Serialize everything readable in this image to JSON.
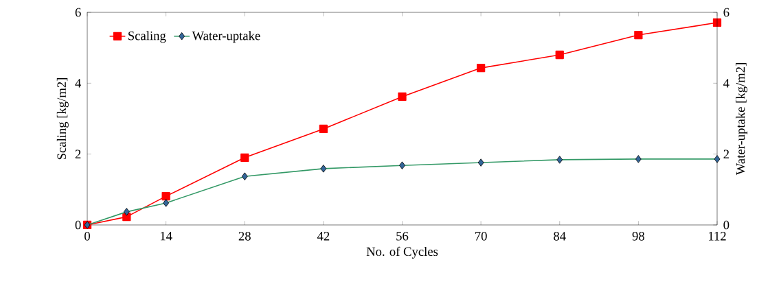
{
  "chart_data": {
    "type": "line",
    "xlabel": "No. of Cycles",
    "ylabel": "Scaling  [kg/m2]",
    "y2label": "Water-uptake  [kg/m2]",
    "x": [
      0,
      7,
      14,
      28,
      42,
      56,
      70,
      84,
      98,
      112
    ],
    "xlim": [
      0,
      112
    ],
    "xticks": [
      0,
      14,
      28,
      42,
      56,
      70,
      84,
      98,
      112
    ],
    "ylim": [
      0,
      6
    ],
    "yticks": [
      0,
      2,
      4,
      6
    ],
    "y2lim": [
      0,
      6
    ],
    "y2ticks": [
      0,
      2,
      4,
      6
    ],
    "legend": "top left",
    "grid": false,
    "series": [
      {
        "name": "Scaling",
        "color": "#ff0000",
        "marker": "square",
        "values": [
          0,
          0.23,
          0.81,
          1.9,
          2.71,
          3.62,
          4.43,
          4.8,
          5.36,
          5.71
        ]
      },
      {
        "name": "Water-uptake",
        "color": "#339966",
        "marker": "diamond",
        "axis": "y2",
        "values": [
          0,
          0.37,
          0.62,
          1.37,
          1.59,
          1.68,
          1.76,
          1.84,
          1.86,
          1.86
        ]
      }
    ]
  }
}
